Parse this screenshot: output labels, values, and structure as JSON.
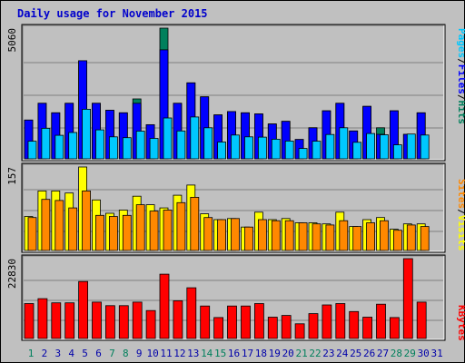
{
  "title": "Daily usage for November 2015",
  "labels": {
    "pages": "Pages",
    "files": "Files",
    "hits": "Hits",
    "sites": "Sites",
    "visits": "Visits",
    "kbytes": "KBytes",
    "sep": "/"
  },
  "colors": {
    "hits": "#00805c",
    "files": "#0000ff",
    "pages": "#00c8ff",
    "visits": "#ffff00",
    "sites": "#ff8800",
    "kbytes": "#ff0000",
    "weekend": "#00805c",
    "weekday": "#0000aa"
  },
  "chart_data": [
    {
      "type": "bar",
      "panel": "hits-files-pages",
      "ylim": [
        0,
        5060
      ],
      "tick_label": "5060",
      "categories": [
        "1",
        "2",
        "3",
        "4",
        "5",
        "6",
        "7",
        "8",
        "9",
        "10",
        "11",
        "12",
        "13",
        "14",
        "15",
        "16",
        "17",
        "18",
        "19",
        "20",
        "21",
        "22",
        "23",
        "24",
        "25",
        "26",
        "27",
        "28",
        "29",
        "30",
        "31"
      ],
      "series": [
        {
          "name": "Hits",
          "values": [
            1500,
            2150,
            1780,
            2150,
            3800,
            2150,
            1880,
            1780,
            2320,
            1320,
            5060,
            2150,
            2940,
            2400,
            1700,
            1830,
            1780,
            1740,
            1350,
            1450,
            750,
            1200,
            1860,
            2150,
            1080,
            2030,
            1200,
            1860,
            950,
            1780,
            0
          ]
        },
        {
          "name": "Files",
          "values": [
            1500,
            2150,
            1780,
            2150,
            3800,
            2150,
            1880,
            1780,
            2150,
            1320,
            4220,
            2150,
            2940,
            2400,
            1700,
            1830,
            1780,
            1740,
            1350,
            1450,
            750,
            1200,
            1860,
            2150,
            1080,
            2030,
            950,
            1860,
            950,
            1780,
            0
          ]
        },
        {
          "name": "Pages",
          "values": [
            680,
            1180,
            910,
            1020,
            1920,
            1120,
            850,
            820,
            1070,
            790,
            1580,
            1080,
            1620,
            1200,
            650,
            920,
            850,
            840,
            760,
            690,
            400,
            680,
            940,
            1200,
            640,
            980,
            930,
            540,
            960,
            920,
            0
          ]
        }
      ]
    },
    {
      "type": "bar",
      "panel": "visits-sites",
      "ylim": [
        0,
        157
      ],
      "tick_label": "157",
      "categories": [
        "1",
        "2",
        "3",
        "4",
        "5",
        "6",
        "7",
        "8",
        "9",
        "10",
        "11",
        "12",
        "13",
        "14",
        "15",
        "16",
        "17",
        "18",
        "19",
        "20",
        "21",
        "22",
        "23",
        "24",
        "25",
        "26",
        "27",
        "28",
        "29",
        "30",
        "31"
      ],
      "series": [
        {
          "name": "Visits",
          "values": [
            64,
            112,
            112,
            108,
            157,
            95,
            70,
            76,
            102,
            86,
            80,
            104,
            123,
            69,
            58,
            60,
            44,
            72,
            58,
            60,
            52,
            52,
            50,
            72,
            45,
            58,
            62,
            40,
            50,
            50,
            0
          ]
        },
        {
          "name": "Sites",
          "values": [
            62,
            96,
            94,
            80,
            112,
            66,
            64,
            66,
            86,
            74,
            76,
            90,
            100,
            62,
            58,
            60,
            44,
            58,
            56,
            56,
            52,
            50,
            48,
            56,
            45,
            52,
            56,
            38,
            48,
            45,
            0
          ]
        }
      ]
    },
    {
      "type": "bar",
      "panel": "kbytes",
      "ylim": [
        0,
        22830
      ],
      "tick_label": "22830",
      "categories": [
        "1",
        "2",
        "3",
        "4",
        "5",
        "6",
        "7",
        "8",
        "9",
        "10",
        "11",
        "12",
        "13",
        "14",
        "15",
        "16",
        "17",
        "18",
        "19",
        "20",
        "21",
        "22",
        "23",
        "24",
        "25",
        "26",
        "27",
        "28",
        "29",
        "30",
        "31"
      ],
      "series": [
        {
          "name": "KBytes",
          "values": [
            10000,
            11400,
            10200,
            10200,
            16300,
            10400,
            9400,
            9400,
            10400,
            8000,
            18400,
            10800,
            14500,
            9300,
            6000,
            9300,
            9300,
            10000,
            6100,
            6600,
            4200,
            7100,
            9600,
            10000,
            7700,
            6100,
            9800,
            6000,
            22830,
            10400,
            0
          ]
        }
      ]
    }
  ]
}
